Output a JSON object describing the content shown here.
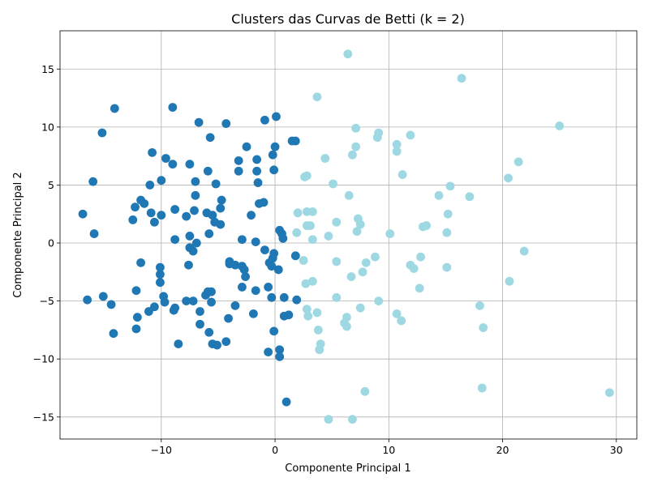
{
  "chart_data": {
    "type": "scatter",
    "title": "Clusters das Curvas de Betti (k = 2)",
    "xlabel": "Componente Principal 1",
    "ylabel": "Componente Principal 2",
    "xlim": [
      -18.9,
      31.8
    ],
    "ylim": [
      -16.9,
      18.3
    ],
    "xticks": [
      -10,
      0,
      10,
      20,
      30
    ],
    "yticks": [
      -15,
      -10,
      -5,
      0,
      5,
      10,
      15
    ],
    "grid": true,
    "series": [
      {
        "color": "#1f77b4",
        "points": [
          [
            -14.1,
            11.6
          ],
          [
            -9.0,
            11.7
          ],
          [
            -6.7,
            10.4
          ],
          [
            -4.3,
            10.3
          ],
          [
            -0.9,
            10.6
          ],
          [
            0.1,
            10.9
          ],
          [
            -15.2,
            9.5
          ],
          [
            -5.7,
            9.1
          ],
          [
            1.5,
            8.8
          ],
          [
            1.8,
            8.8
          ],
          [
            -10.8,
            7.8
          ],
          [
            -2.5,
            8.3
          ],
          [
            0.0,
            8.3
          ],
          [
            -9.6,
            7.3
          ],
          [
            -3.2,
            7.1
          ],
          [
            -1.6,
            7.2
          ],
          [
            -0.2,
            7.6
          ],
          [
            -9.0,
            6.8
          ],
          [
            -7.5,
            6.8
          ],
          [
            -5.9,
            6.2
          ],
          [
            -3.2,
            6.2
          ],
          [
            -1.6,
            6.2
          ],
          [
            -0.1,
            6.3
          ],
          [
            -16.0,
            5.3
          ],
          [
            -11.0,
            5.0
          ],
          [
            -10.0,
            5.4
          ],
          [
            -7.0,
            5.3
          ],
          [
            -5.2,
            5.1
          ],
          [
            -1.5,
            5.2
          ],
          [
            -12.3,
            3.1
          ],
          [
            -11.8,
            3.7
          ],
          [
            -11.5,
            3.4
          ],
          [
            -7.0,
            4.1
          ],
          [
            -4.7,
            3.7
          ],
          [
            -4.8,
            3.0
          ],
          [
            -8.8,
            2.9
          ],
          [
            -7.1,
            2.8
          ],
          [
            -1.4,
            3.4
          ],
          [
            -1.0,
            3.5
          ],
          [
            -16.9,
            2.5
          ],
          [
            -10.9,
            2.6
          ],
          [
            -10.0,
            2.4
          ],
          [
            -7.8,
            2.3
          ],
          [
            -6.0,
            2.6
          ],
          [
            -5.5,
            2.4
          ],
          [
            -5.3,
            1.8
          ],
          [
            -4.8,
            1.6
          ],
          [
            -2.1,
            2.4
          ],
          [
            -12.5,
            2.0
          ],
          [
            -10.6,
            1.8
          ],
          [
            -15.9,
            0.8
          ],
          [
            -8.8,
            0.3
          ],
          [
            -7.5,
            0.6
          ],
          [
            -5.8,
            0.8
          ],
          [
            -2.9,
            0.3
          ],
          [
            -1.7,
            0.1
          ],
          [
            0.4,
            1.1
          ],
          [
            0.6,
            0.8
          ],
          [
            0.7,
            0.4
          ],
          [
            -7.5,
            -0.4
          ],
          [
            -6.9,
            0.0
          ],
          [
            -7.2,
            -0.7
          ],
          [
            -0.9,
            -0.6
          ],
          [
            -0.1,
            -0.9
          ],
          [
            -0.2,
            -1.3
          ],
          [
            1.8,
            -1.1
          ],
          [
            -11.8,
            -1.7
          ],
          [
            -10.1,
            -2.1
          ],
          [
            -7.6,
            -1.9
          ],
          [
            -4.0,
            -1.6
          ],
          [
            -4.0,
            -1.8
          ],
          [
            -3.5,
            -1.9
          ],
          [
            -2.9,
            -2.0
          ],
          [
            -2.7,
            -2.3
          ],
          [
            -0.5,
            -1.7
          ],
          [
            -0.3,
            -2.0
          ],
          [
            0.3,
            -2.3
          ],
          [
            -10.1,
            -2.7
          ],
          [
            -10.1,
            -3.4
          ],
          [
            -2.6,
            -2.9
          ],
          [
            -12.2,
            -4.1
          ],
          [
            -2.9,
            -3.8
          ],
          [
            -1.7,
            -4.1
          ],
          [
            -0.6,
            -3.8
          ],
          [
            -16.5,
            -4.9
          ],
          [
            -15.1,
            -4.6
          ],
          [
            -9.8,
            -4.6
          ],
          [
            -6.1,
            -4.5
          ],
          [
            -5.9,
            -4.2
          ],
          [
            -5.6,
            -4.2
          ],
          [
            -0.3,
            -4.7
          ],
          [
            0.8,
            -4.7
          ],
          [
            1.9,
            -4.9
          ],
          [
            -14.4,
            -5.3
          ],
          [
            -10.6,
            -5.5
          ],
          [
            -9.7,
            -5.1
          ],
          [
            -8.8,
            -5.6
          ],
          [
            -8.9,
            -5.8
          ],
          [
            -7.8,
            -5.0
          ],
          [
            -7.2,
            -5.0
          ],
          [
            -5.6,
            -5.1
          ],
          [
            -3.5,
            -5.4
          ],
          [
            -12.1,
            -6.4
          ],
          [
            -11.1,
            -5.9
          ],
          [
            -6.6,
            -5.9
          ],
          [
            -4.1,
            -6.5
          ],
          [
            -1.9,
            -6.1
          ],
          [
            0.8,
            -6.3
          ],
          [
            1.2,
            -6.2
          ],
          [
            -6.6,
            -7.0
          ],
          [
            -12.2,
            -7.4
          ],
          [
            -14.2,
            -7.8
          ],
          [
            -5.8,
            -7.7
          ],
          [
            -0.1,
            -7.6
          ],
          [
            -8.5,
            -8.7
          ],
          [
            -5.5,
            -8.7
          ],
          [
            -5.1,
            -8.8
          ],
          [
            -4.3,
            -8.5
          ],
          [
            0.4,
            -9.2
          ],
          [
            -0.6,
            -9.4
          ],
          [
            0.4,
            -9.8
          ],
          [
            1.0,
            -13.7
          ]
        ]
      },
      {
        "color": "#9ed8e3",
        "points": [
          [
            6.4,
            16.3
          ],
          [
            16.4,
            14.2
          ],
          [
            3.7,
            12.6
          ],
          [
            25.0,
            10.1
          ],
          [
            7.1,
            9.9
          ],
          [
            9.1,
            9.5
          ],
          [
            9.0,
            9.1
          ],
          [
            11.9,
            9.3
          ],
          [
            10.7,
            8.5
          ],
          [
            7.1,
            8.3
          ],
          [
            10.7,
            7.9
          ],
          [
            6.8,
            7.6
          ],
          [
            4.4,
            7.3
          ],
          [
            21.4,
            7.0
          ],
          [
            2.6,
            5.7
          ],
          [
            2.8,
            5.8
          ],
          [
            11.2,
            5.9
          ],
          [
            20.5,
            5.6
          ],
          [
            5.1,
            5.1
          ],
          [
            15.4,
            4.9
          ],
          [
            6.5,
            4.1
          ],
          [
            14.4,
            4.1
          ],
          [
            17.1,
            4.0
          ],
          [
            2.8,
            2.7
          ],
          [
            3.3,
            2.7
          ],
          [
            2.0,
            2.6
          ],
          [
            15.2,
            2.5
          ],
          [
            7.3,
            2.1
          ],
          [
            5.4,
            1.8
          ],
          [
            7.5,
            1.6
          ],
          [
            2.8,
            1.5
          ],
          [
            3.1,
            1.5
          ],
          [
            13.3,
            1.5
          ],
          [
            13.0,
            1.4
          ],
          [
            7.2,
            1.0
          ],
          [
            1.9,
            0.9
          ],
          [
            15.1,
            0.9
          ],
          [
            10.1,
            0.8
          ],
          [
            4.7,
            0.6
          ],
          [
            3.3,
            0.3
          ],
          [
            21.9,
            -0.7
          ],
          [
            8.8,
            -1.2
          ],
          [
            12.8,
            -1.2
          ],
          [
            2.5,
            -1.5
          ],
          [
            5.4,
            -1.6
          ],
          [
            8.0,
            -1.7
          ],
          [
            11.9,
            -1.9
          ],
          [
            12.2,
            -2.2
          ],
          [
            15.1,
            -2.1
          ],
          [
            7.7,
            -2.5
          ],
          [
            6.7,
            -2.9
          ],
          [
            3.3,
            -3.3
          ],
          [
            2.7,
            -3.5
          ],
          [
            20.6,
            -3.3
          ],
          [
            12.7,
            -3.9
          ],
          [
            5.4,
            -4.7
          ],
          [
            9.1,
            -5.0
          ],
          [
            18.0,
            -5.4
          ],
          [
            2.8,
            -5.7
          ],
          [
            7.5,
            -5.6
          ],
          [
            3.7,
            -6.0
          ],
          [
            10.7,
            -6.1
          ],
          [
            2.9,
            -6.3
          ],
          [
            6.3,
            -6.4
          ],
          [
            11.1,
            -6.7
          ],
          [
            6.1,
            -6.9
          ],
          [
            6.3,
            -7.2
          ],
          [
            3.8,
            -7.5
          ],
          [
            18.3,
            -7.3
          ],
          [
            4.0,
            -8.7
          ],
          [
            3.9,
            -9.2
          ],
          [
            18.2,
            -12.5
          ],
          [
            7.9,
            -12.8
          ],
          [
            29.4,
            -12.9
          ],
          [
            4.7,
            -15.2
          ],
          [
            6.8,
            -15.2
          ]
        ]
      }
    ]
  }
}
